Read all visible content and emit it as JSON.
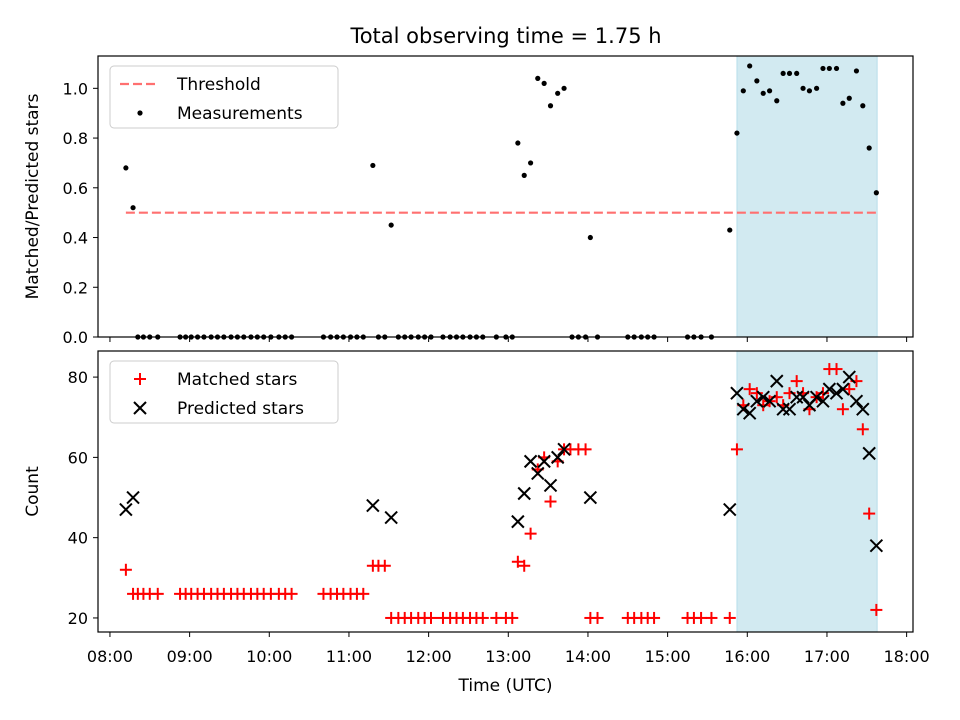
{
  "figure": {
    "title": "Total observing time = 1.75 h"
  },
  "chart_data": [
    {
      "type": "scatter",
      "ylabel": "Matched/Predicted stars",
      "xlabel": "",
      "xlim": [
        7.85,
        18.08
      ],
      "ylim": [
        0.0,
        1.13
      ],
      "yticks": [
        0.0,
        0.2,
        0.4,
        0.6,
        0.8,
        1.0
      ],
      "ytick_labels": [
        "0.0",
        "0.2",
        "0.4",
        "0.6",
        "0.8",
        "1.0"
      ],
      "grid": false,
      "legend": {
        "position": "top-left",
        "entries": [
          "Threshold",
          "Measurements"
        ]
      },
      "shaded_region": {
        "x": [
          15.87,
          17.63
        ],
        "color": "#add8e6"
      },
      "threshold": {
        "name": "Threshold",
        "y": 0.5,
        "x": [
          8.2,
          17.63
        ],
        "color": "#ff7070"
      },
      "series": [
        {
          "name": "Measurements",
          "marker": "dot",
          "color": "#000000",
          "points": [
            [
              8.2,
              0.68
            ],
            [
              8.29,
              0.52
            ],
            [
              8.35,
              0.0
            ],
            [
              8.42,
              0.0
            ],
            [
              8.5,
              0.0
            ],
            [
              8.6,
              0.0
            ],
            [
              8.88,
              0.0
            ],
            [
              8.95,
              0.0
            ],
            [
              9.02,
              0.0
            ],
            [
              9.1,
              0.0
            ],
            [
              9.18,
              0.0
            ],
            [
              9.27,
              0.0
            ],
            [
              9.35,
              0.0
            ],
            [
              9.43,
              0.0
            ],
            [
              9.52,
              0.0
            ],
            [
              9.6,
              0.0
            ],
            [
              9.68,
              0.0
            ],
            [
              9.77,
              0.0
            ],
            [
              9.85,
              0.0
            ],
            [
              9.93,
              0.0
            ],
            [
              10.02,
              0.0
            ],
            [
              10.12,
              0.0
            ],
            [
              10.2,
              0.0
            ],
            [
              10.28,
              0.0
            ],
            [
              10.68,
              0.0
            ],
            [
              10.77,
              0.0
            ],
            [
              10.85,
              0.0
            ],
            [
              10.93,
              0.0
            ],
            [
              11.02,
              0.0
            ],
            [
              11.1,
              0.0
            ],
            [
              11.18,
              0.0
            ],
            [
              11.3,
              0.69
            ],
            [
              11.37,
              0.0
            ],
            [
              11.45,
              0.0
            ],
            [
              11.53,
              0.45
            ],
            [
              11.62,
              0.0
            ],
            [
              11.7,
              0.0
            ],
            [
              11.78,
              0.0
            ],
            [
              11.87,
              0.0
            ],
            [
              11.95,
              0.0
            ],
            [
              12.03,
              0.0
            ],
            [
              12.18,
              0.0
            ],
            [
              12.27,
              0.0
            ],
            [
              12.35,
              0.0
            ],
            [
              12.43,
              0.0
            ],
            [
              12.52,
              0.0
            ],
            [
              12.6,
              0.0
            ],
            [
              12.68,
              0.0
            ],
            [
              12.85,
              0.0
            ],
            [
              12.97,
              0.0
            ],
            [
              13.05,
              0.0
            ],
            [
              13.12,
              0.78
            ],
            [
              13.2,
              0.65
            ],
            [
              13.28,
              0.7
            ],
            [
              13.37,
              1.04
            ],
            [
              13.45,
              1.02
            ],
            [
              13.53,
              0.93
            ],
            [
              13.62,
              0.98
            ],
            [
              13.7,
              1.0
            ],
            [
              13.8,
              0.0
            ],
            [
              13.88,
              0.0
            ],
            [
              13.97,
              0.0
            ],
            [
              14.03,
              0.4
            ],
            [
              14.12,
              0.0
            ],
            [
              14.5,
              0.0
            ],
            [
              14.58,
              0.0
            ],
            [
              14.67,
              0.0
            ],
            [
              14.75,
              0.0
            ],
            [
              14.83,
              0.0
            ],
            [
              15.25,
              0.0
            ],
            [
              15.33,
              0.0
            ],
            [
              15.42,
              0.0
            ],
            [
              15.55,
              0.0
            ],
            [
              15.78,
              0.43
            ],
            [
              15.87,
              0.82
            ],
            [
              15.95,
              0.99
            ],
            [
              16.03,
              1.09
            ],
            [
              16.12,
              1.03
            ],
            [
              16.2,
              0.98
            ],
            [
              16.28,
              0.99
            ],
            [
              16.37,
              0.95
            ],
            [
              16.45,
              1.06
            ],
            [
              16.53,
              1.06
            ],
            [
              16.62,
              1.06
            ],
            [
              16.7,
              1.0
            ],
            [
              16.78,
              0.99
            ],
            [
              16.87,
              1.0
            ],
            [
              16.95,
              1.08
            ],
            [
              17.03,
              1.08
            ],
            [
              17.12,
              1.08
            ],
            [
              17.2,
              0.94
            ],
            [
              17.28,
              0.96
            ],
            [
              17.37,
              1.07
            ],
            [
              17.45,
              0.93
            ],
            [
              17.53,
              0.76
            ],
            [
              17.62,
              0.58
            ]
          ]
        }
      ]
    },
    {
      "type": "scatter",
      "ylabel": "Count",
      "xlabel": "Time (UTC)",
      "xlim": [
        7.85,
        18.08
      ],
      "ylim": [
        16.5,
        86.5
      ],
      "xticks": [
        8,
        9,
        10,
        11,
        12,
        13,
        14,
        15,
        16,
        17,
        18
      ],
      "xtick_labels": [
        "08:00",
        "09:00",
        "10:00",
        "11:00",
        "12:00",
        "13:00",
        "14:00",
        "15:00",
        "16:00",
        "17:00",
        "18:00"
      ],
      "yticks": [
        20,
        40,
        60,
        80
      ],
      "ytick_labels": [
        "20",
        "40",
        "60",
        "80"
      ],
      "grid": false,
      "legend": {
        "position": "top-left",
        "entries": [
          "Matched stars",
          "Predicted stars"
        ]
      },
      "shaded_region": {
        "x": [
          15.87,
          17.63
        ],
        "color": "#add8e6"
      },
      "series": [
        {
          "name": "Matched stars",
          "marker": "plus",
          "color": "#ff0000",
          "points": [
            [
              8.2,
              32
            ],
            [
              8.29,
              26
            ],
            [
              8.35,
              26
            ],
            [
              8.42,
              26
            ],
            [
              8.5,
              26
            ],
            [
              8.6,
              26
            ],
            [
              8.88,
              26
            ],
            [
              8.95,
              26
            ],
            [
              9.02,
              26
            ],
            [
              9.1,
              26
            ],
            [
              9.18,
              26
            ],
            [
              9.27,
              26
            ],
            [
              9.35,
              26
            ],
            [
              9.43,
              26
            ],
            [
              9.52,
              26
            ],
            [
              9.6,
              26
            ],
            [
              9.68,
              26
            ],
            [
              9.77,
              26
            ],
            [
              9.85,
              26
            ],
            [
              9.93,
              26
            ],
            [
              10.02,
              26
            ],
            [
              10.12,
              26
            ],
            [
              10.2,
              26
            ],
            [
              10.28,
              26
            ],
            [
              10.68,
              26
            ],
            [
              10.77,
              26
            ],
            [
              10.85,
              26
            ],
            [
              10.93,
              26
            ],
            [
              11.02,
              26
            ],
            [
              11.1,
              26
            ],
            [
              11.18,
              26
            ],
            [
              11.3,
              33
            ],
            [
              11.37,
              33
            ],
            [
              11.45,
              33
            ],
            [
              11.53,
              20
            ],
            [
              11.62,
              20
            ],
            [
              11.7,
              20
            ],
            [
              11.78,
              20
            ],
            [
              11.87,
              20
            ],
            [
              11.95,
              20
            ],
            [
              12.03,
              20
            ],
            [
              12.18,
              20
            ],
            [
              12.27,
              20
            ],
            [
              12.35,
              20
            ],
            [
              12.43,
              20
            ],
            [
              12.52,
              20
            ],
            [
              12.6,
              20
            ],
            [
              12.68,
              20
            ],
            [
              12.85,
              20
            ],
            [
              12.97,
              20
            ],
            [
              13.05,
              20
            ],
            [
              13.12,
              34
            ],
            [
              13.2,
              33
            ],
            [
              13.28,
              41
            ],
            [
              13.37,
              57
            ],
            [
              13.45,
              60
            ],
            [
              13.53,
              49
            ],
            [
              13.62,
              59
            ],
            [
              13.7,
              62
            ],
            [
              13.78,
              62
            ],
            [
              13.88,
              62
            ],
            [
              13.97,
              62
            ],
            [
              14.03,
              20
            ],
            [
              14.12,
              20
            ],
            [
              14.5,
              20
            ],
            [
              14.58,
              20
            ],
            [
              14.67,
              20
            ],
            [
              14.75,
              20
            ],
            [
              14.83,
              20
            ],
            [
              15.25,
              20
            ],
            [
              15.33,
              20
            ],
            [
              15.42,
              20
            ],
            [
              15.55,
              20
            ],
            [
              15.78,
              20
            ],
            [
              15.87,
              62
            ],
            [
              15.95,
              73
            ],
            [
              16.03,
              77
            ],
            [
              16.12,
              76
            ],
            [
              16.2,
              73
            ],
            [
              16.28,
              74
            ],
            [
              16.37,
              75
            ],
            [
              16.45,
              73
            ],
            [
              16.53,
              76
            ],
            [
              16.62,
              79
            ],
            [
              16.7,
              76
            ],
            [
              16.78,
              72
            ],
            [
              16.87,
              75
            ],
            [
              16.95,
              76
            ],
            [
              17.03,
              82
            ],
            [
              17.12,
              82
            ],
            [
              17.2,
              72
            ],
            [
              17.28,
              77
            ],
            [
              17.37,
              79
            ],
            [
              17.45,
              67
            ],
            [
              17.53,
              46
            ],
            [
              17.62,
              22
            ]
          ]
        },
        {
          "name": "Predicted stars",
          "marker": "x",
          "color": "#000000",
          "points": [
            [
              8.2,
              47
            ],
            [
              8.29,
              50
            ],
            [
              11.3,
              48
            ],
            [
              11.53,
              45
            ],
            [
              13.12,
              44
            ],
            [
              13.2,
              51
            ],
            [
              13.28,
              59
            ],
            [
              13.37,
              56
            ],
            [
              13.45,
              59
            ],
            [
              13.53,
              53
            ],
            [
              13.62,
              60
            ],
            [
              13.7,
              62
            ],
            [
              14.03,
              50
            ],
            [
              15.78,
              47
            ],
            [
              15.87,
              76
            ],
            [
              15.95,
              72
            ],
            [
              16.03,
              71
            ],
            [
              16.12,
              74
            ],
            [
              16.2,
              75
            ],
            [
              16.28,
              74
            ],
            [
              16.37,
              79
            ],
            [
              16.45,
              72
            ],
            [
              16.53,
              72
            ],
            [
              16.62,
              75
            ],
            [
              16.7,
              75
            ],
            [
              16.78,
              73
            ],
            [
              16.87,
              75
            ],
            [
              16.95,
              74
            ],
            [
              17.03,
              77
            ],
            [
              17.12,
              76
            ],
            [
              17.2,
              77
            ],
            [
              17.28,
              80
            ],
            [
              17.37,
              74
            ],
            [
              17.45,
              72
            ],
            [
              17.53,
              61
            ],
            [
              17.62,
              38
            ]
          ]
        }
      ]
    }
  ]
}
